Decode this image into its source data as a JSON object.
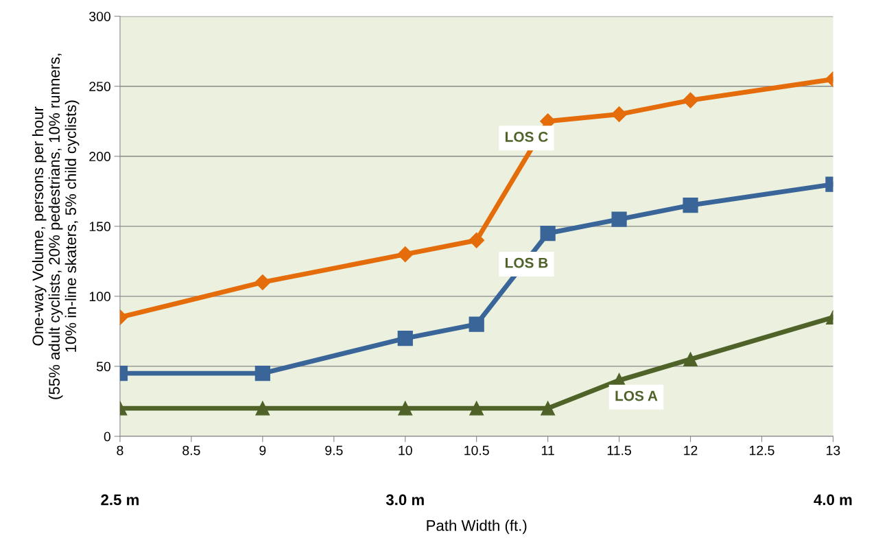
{
  "chart_data": {
    "type": "line",
    "xlabel": "Path Width (ft.)",
    "ylabel": "One-way Volume, persons per hour\n(55% adult cyclists, 20% pedestrians, 10% runners,\n10% in-line skaters, 5% child cyclists)",
    "x": [
      8,
      9,
      10,
      10.5,
      11,
      11.5,
      12,
      13
    ],
    "series": [
      {
        "name": "LOS C",
        "color": "#e46c0a",
        "marker": "diamond",
        "values": [
          85,
          110,
          130,
          140,
          225,
          230,
          240,
          255
        ]
      },
      {
        "name": "LOS B",
        "color": "#3a6599",
        "marker": "square",
        "values": [
          45,
          45,
          70,
          80,
          145,
          155,
          165,
          180
        ]
      },
      {
        "name": "LOS A",
        "color": "#4f6228",
        "marker": "triangle",
        "values": [
          20,
          20,
          20,
          20,
          20,
          40,
          55,
          85
        ]
      }
    ],
    "xlim": [
      8,
      13
    ],
    "xticks": [
      8,
      8.5,
      9,
      9.5,
      10,
      10.5,
      11,
      11.5,
      12,
      12.5,
      13
    ],
    "ylim": [
      0,
      300
    ],
    "yticks": [
      0,
      50,
      100,
      150,
      200,
      250,
      300
    ],
    "annotations": [
      "2.5 m",
      "3.0 m",
      "4.0 m"
    ],
    "grid": "y",
    "legend": false,
    "line_style": "solid"
  }
}
